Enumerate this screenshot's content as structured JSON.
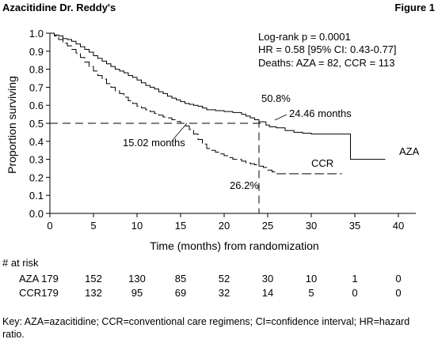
{
  "header": {
    "title": "Azacitidine Dr. Reddy's",
    "figure_label": "Figure 1"
  },
  "chart_data": {
    "type": "line",
    "title": "",
    "xlabel": "Time (months) from randomization",
    "ylabel": "Proportion surviving",
    "xlim": [
      0,
      42
    ],
    "ylim": [
      0,
      1.0
    ],
    "x_ticks": [
      "0",
      "5",
      "10",
      "15",
      "20",
      "25",
      "30",
      "35",
      "40"
    ],
    "y_ticks": [
      "0.0",
      "0.1",
      "0.2",
      "0.3",
      "0.4",
      "0.5",
      "0.6",
      "0.7",
      "0.8",
      "0.9",
      "1.0"
    ],
    "series": [
      {
        "name": "AZA",
        "style": "solid",
        "color": "#000000",
        "points": [
          [
            0,
            1.0
          ],
          [
            0.5,
            0.99
          ],
          [
            1,
            0.985
          ],
          [
            1.5,
            0.97
          ],
          [
            2,
            0.965
          ],
          [
            2.5,
            0.955
          ],
          [
            3,
            0.94
          ],
          [
            3.5,
            0.925
          ],
          [
            4,
            0.91
          ],
          [
            4.5,
            0.895
          ],
          [
            5,
            0.875
          ],
          [
            5.5,
            0.86
          ],
          [
            6,
            0.845
          ],
          [
            6.5,
            0.83
          ],
          [
            7,
            0.815
          ],
          [
            7.5,
            0.8
          ],
          [
            8,
            0.79
          ],
          [
            8.5,
            0.78
          ],
          [
            9,
            0.765
          ],
          [
            9.5,
            0.755
          ],
          [
            10,
            0.74
          ],
          [
            10.5,
            0.725
          ],
          [
            11,
            0.71
          ],
          [
            11.5,
            0.7
          ],
          [
            12,
            0.69
          ],
          [
            12.5,
            0.675
          ],
          [
            13,
            0.665
          ],
          [
            13.5,
            0.65
          ],
          [
            14,
            0.64
          ],
          [
            14.5,
            0.63
          ],
          [
            15,
            0.62
          ],
          [
            15.5,
            0.61
          ],
          [
            16,
            0.605
          ],
          [
            16.5,
            0.6
          ],
          [
            17,
            0.595
          ],
          [
            17.5,
            0.585
          ],
          [
            18,
            0.575
          ],
          [
            19,
            0.57
          ],
          [
            20,
            0.565
          ],
          [
            21,
            0.56
          ],
          [
            22,
            0.55
          ],
          [
            22.5,
            0.54
          ],
          [
            23,
            0.53
          ],
          [
            23.5,
            0.52
          ],
          [
            24,
            0.508
          ],
          [
            24.46,
            0.508
          ],
          [
            24.8,
            0.49
          ],
          [
            25.2,
            0.48
          ],
          [
            26,
            0.475
          ],
          [
            27,
            0.46
          ],
          [
            28,
            0.45
          ],
          [
            29,
            0.445
          ],
          [
            30,
            0.44
          ],
          [
            31,
            0.44
          ],
          [
            32,
            0.44
          ],
          [
            33,
            0.44
          ],
          [
            34.5,
            0.44
          ],
          [
            34.5,
            0.3
          ],
          [
            36,
            0.3
          ],
          [
            38.5,
            0.3
          ]
        ]
      },
      {
        "name": "CCR",
        "style": "dashed",
        "color": "#000000",
        "points": [
          [
            0,
            1.0
          ],
          [
            0.5,
            0.985
          ],
          [
            1,
            0.965
          ],
          [
            1.5,
            0.945
          ],
          [
            2,
            0.93
          ],
          [
            2.5,
            0.91
          ],
          [
            3,
            0.89
          ],
          [
            3.5,
            0.865
          ],
          [
            4,
            0.84
          ],
          [
            4.5,
            0.815
          ],
          [
            5,
            0.79
          ],
          [
            5.5,
            0.765
          ],
          [
            6,
            0.745
          ],
          [
            6.5,
            0.72
          ],
          [
            7,
            0.7
          ],
          [
            7.5,
            0.68
          ],
          [
            8,
            0.665
          ],
          [
            8.5,
            0.645
          ],
          [
            9,
            0.625
          ],
          [
            9.5,
            0.61
          ],
          [
            10,
            0.595
          ],
          [
            10.5,
            0.585
          ],
          [
            11,
            0.575
          ],
          [
            11.5,
            0.565
          ],
          [
            12,
            0.555
          ],
          [
            12.5,
            0.545
          ],
          [
            13,
            0.535
          ],
          [
            13.5,
            0.53
          ],
          [
            14,
            0.52
          ],
          [
            14.5,
            0.51
          ],
          [
            15,
            0.5
          ],
          [
            15.5,
            0.485
          ],
          [
            16,
            0.465
          ],
          [
            16.5,
            0.44
          ],
          [
            17,
            0.41
          ],
          [
            17.5,
            0.385
          ],
          [
            18,
            0.36
          ],
          [
            18.5,
            0.35
          ],
          [
            19,
            0.34
          ],
          [
            19.5,
            0.33
          ],
          [
            20,
            0.32
          ],
          [
            20.5,
            0.31
          ],
          [
            21,
            0.3
          ],
          [
            22,
            0.29
          ],
          [
            22.5,
            0.28
          ],
          [
            23,
            0.275
          ],
          [
            23.5,
            0.27
          ],
          [
            24,
            0.262
          ],
          [
            24.5,
            0.255
          ],
          [
            25,
            0.24
          ],
          [
            25.5,
            0.23
          ],
          [
            26,
            0.22
          ],
          [
            27,
            0.22
          ],
          [
            28,
            0.22
          ],
          [
            29,
            0.22
          ],
          [
            30,
            0.22
          ],
          [
            31,
            0.22
          ],
          [
            32,
            0.22
          ],
          [
            33.5,
            0.22
          ]
        ]
      }
    ],
    "reference_lines": {
      "horizontal_y": 0.5,
      "vertical_x": 24
    },
    "annotations": {
      "stats_line1": "Log-rank p = 0.0001",
      "stats_line2": "HR = 0.58 [95% CI: 0.43-0.77]",
      "stats_line3": "Deaths: AZA = 82, CCR = 113",
      "aza_survival_at_24": "50.8%",
      "ccr_survival_at_24": "26.2%",
      "aza_median": "24.46 months",
      "ccr_median": "15.02 months",
      "aza_label": "AZA",
      "ccr_label": "CCR"
    },
    "grid": false,
    "legend": "none"
  },
  "at_risk": {
    "title": "# at risk",
    "groups": [
      {
        "label": "AZA",
        "values": [
          "179",
          "152",
          "130",
          "85",
          "52",
          "30",
          "10",
          "1",
          "0"
        ]
      },
      {
        "label": "CCR",
        "values": [
          "179",
          "132",
          "95",
          "69",
          "32",
          "14",
          "5",
          "0",
          "0"
        ]
      }
    ]
  },
  "footnote": "Key: AZA=azacitidine; CCR=conventional care regimens; CI=confidence interval; HR=hazard ratio."
}
